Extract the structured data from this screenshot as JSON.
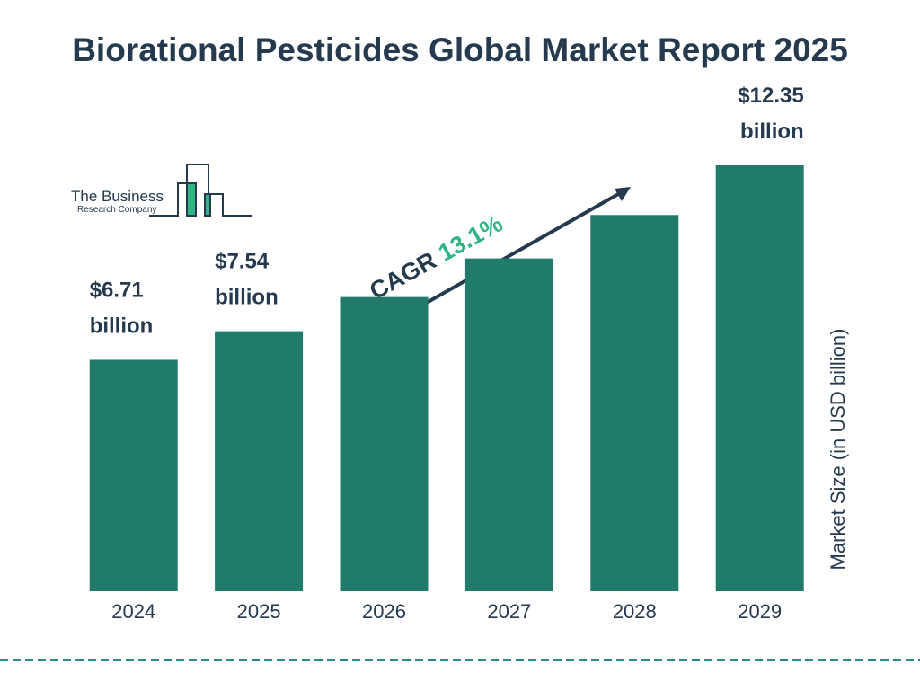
{
  "title": "Biorational Pesticides Global Market Report 2025",
  "logo": {
    "name": "The Business",
    "subname": "Research Company"
  },
  "chart_data": {
    "type": "bar",
    "categories": [
      "2024",
      "2025",
      "2026",
      "2027",
      "2028",
      "2029"
    ],
    "values": [
      6.71,
      7.54,
      8.53,
      9.65,
      10.91,
      12.35
    ],
    "value_labels": [
      "$6.71 billion",
      "$7.54 billion",
      null,
      null,
      null,
      "$12.35 billion"
    ],
    "color": "#207b6b",
    "y_label": "Market Size (in USD billion)",
    "annotation": {
      "label": "CAGR",
      "value": "13.1%",
      "value_color": "#2fb583"
    }
  }
}
